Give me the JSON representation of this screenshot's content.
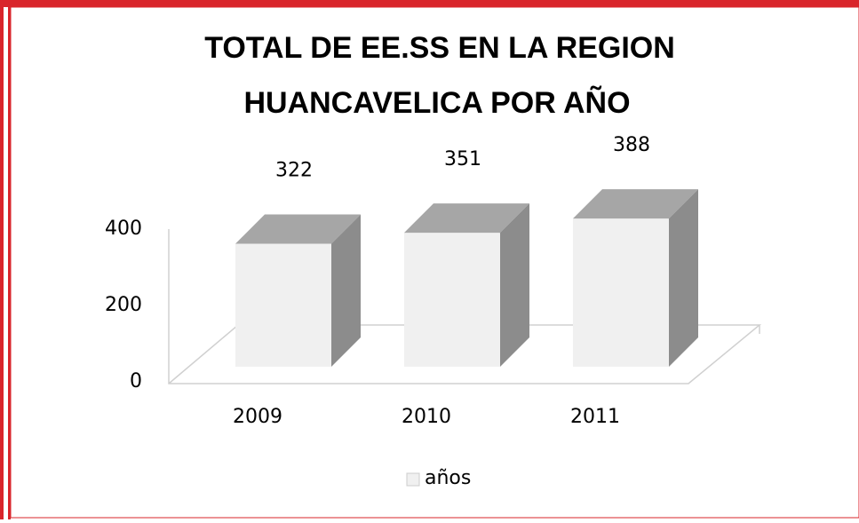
{
  "chart_data": {
    "type": "bar3d",
    "title": [
      "TOTAL DE EE.SS EN LA REGION",
      "HUANCAVELICA POR AÑO"
    ],
    "categories": [
      "2009",
      "2010",
      "2011"
    ],
    "series": [
      {
        "name": "años",
        "color": "#f0f0f0",
        "values": [
          322,
          351,
          388
        ]
      }
    ],
    "ylim": [
      0,
      400
    ],
    "yticks": [
      0,
      200,
      400
    ],
    "grid": false,
    "legend": "bottom"
  }
}
